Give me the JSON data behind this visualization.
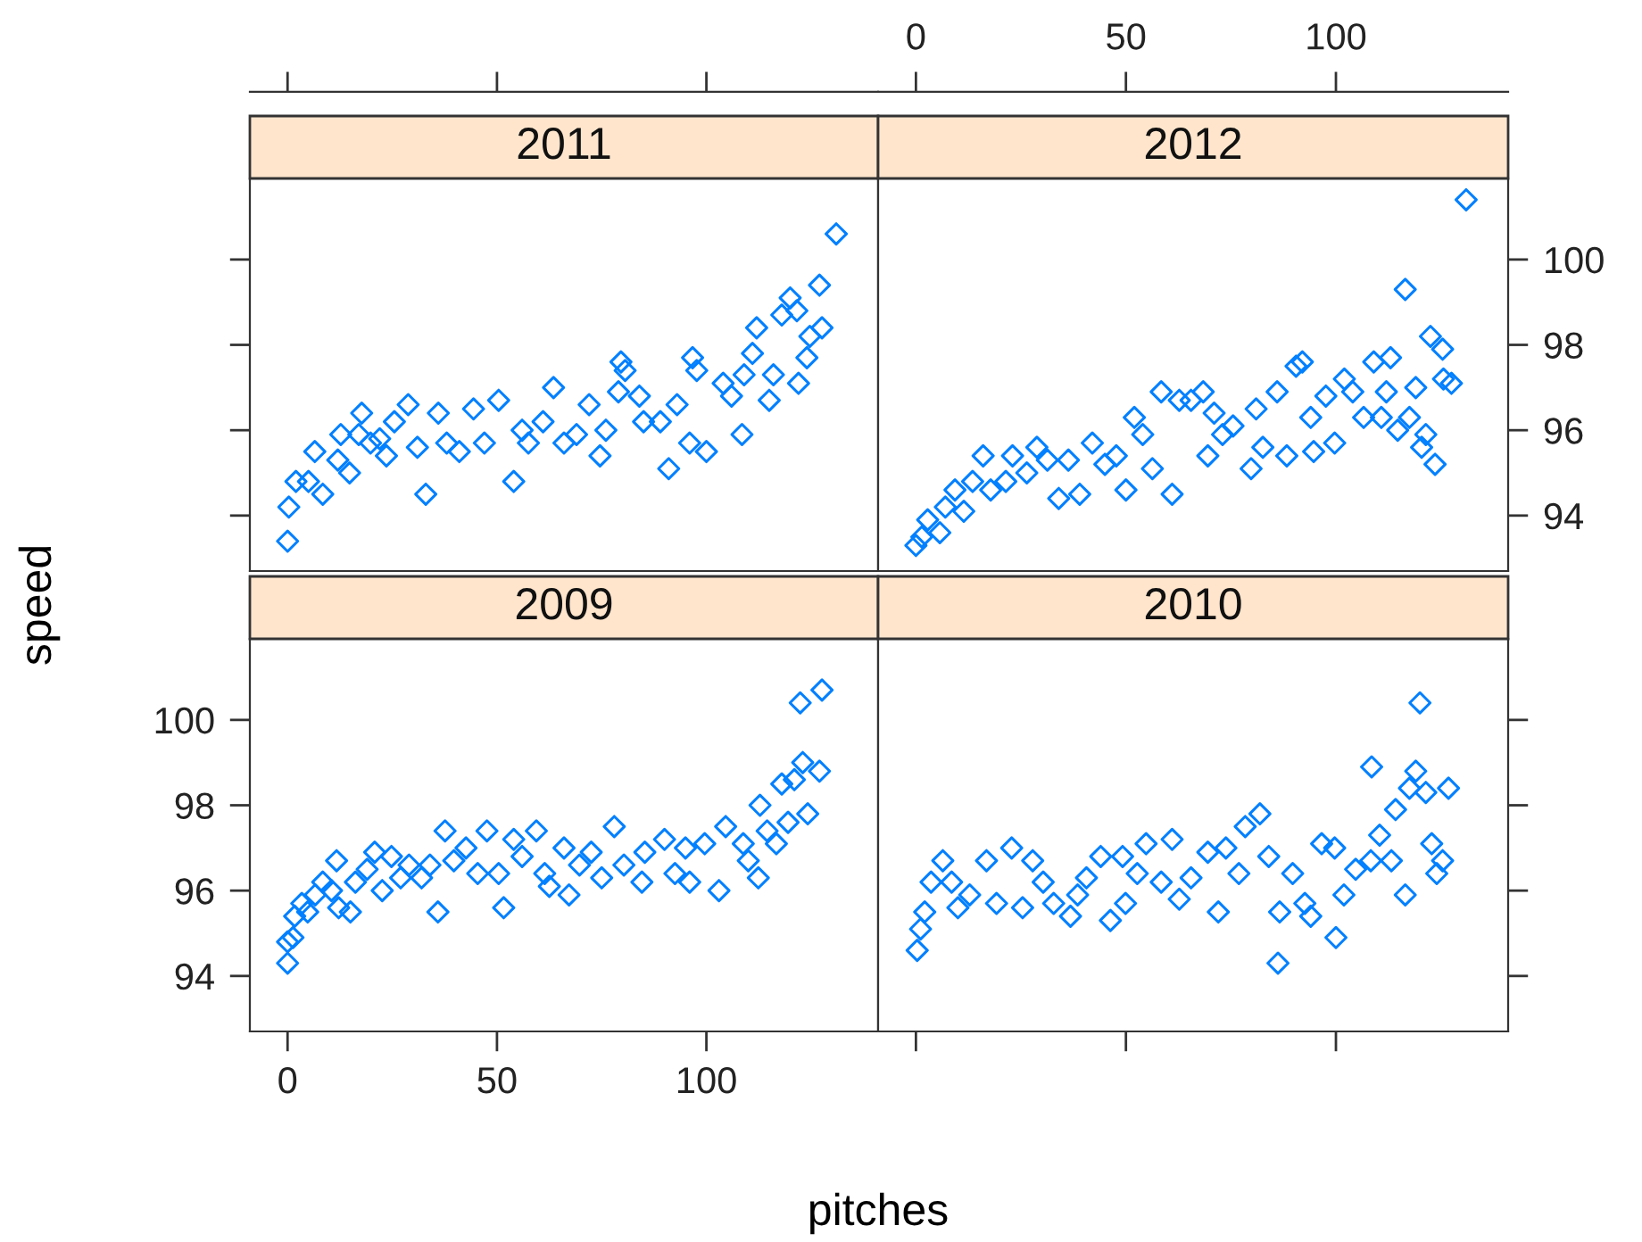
{
  "chart_data": [
    {
      "type": "scatter",
      "title": "2011",
      "xlim": [
        -9,
        141
      ],
      "xticks": [
        0,
        50,
        100
      ],
      "ylim": [
        92.7,
        101.9
      ],
      "yticks": [
        94,
        96,
        98,
        100
      ],
      "tick_labels": false,
      "grid": false,
      "marker": "diamond",
      "series": [
        {
          "color": "#0080ff",
          "x": [
            0,
            0.3,
            2,
            5,
            6.5,
            8.4,
            12,
            12.7,
            14.8,
            17,
            17.7,
            19.8,
            22,
            23.6,
            25.5,
            28.8,
            31,
            33,
            36,
            38,
            41,
            44.4,
            47,
            50.4,
            54,
            56,
            57.5,
            61,
            63.5,
            66,
            69,
            72,
            74.6,
            76,
            79.6,
            80.6,
            79,
            84,
            85,
            89,
            91,
            93,
            96.7,
            97.7,
            96,
            100,
            104,
            106,
            108.5,
            109,
            111,
            112,
            115,
            116,
            118,
            120,
            121.6,
            122,
            124,
            124.7,
            127,
            127.6,
            131
          ],
          "values": [
            93.4,
            94.2,
            94.8,
            94.8,
            95.5,
            94.5,
            95.3,
            95.9,
            95,
            95.9,
            96.4,
            95.7,
            95.8,
            95.4,
            96.2,
            96.6,
            95.6,
            94.5,
            96.4,
            95.7,
            95.5,
            96.5,
            95.7,
            96.7,
            94.8,
            96,
            95.7,
            96.2,
            97,
            95.7,
            95.9,
            96.6,
            95.4,
            96,
            97.6,
            97.4,
            96.9,
            96.8,
            96.2,
            96.2,
            95.1,
            96.6,
            97.7,
            97.4,
            95.7,
            95.5,
            97.1,
            96.8,
            95.9,
            97.3,
            97.8,
            98.4,
            96.7,
            97.3,
            98.7,
            99.1,
            98.8,
            97.1,
            97.7,
            98.2,
            99.4,
            98.4,
            100.6
          ]
        }
      ]
    },
    {
      "type": "scatter",
      "title": "2012",
      "xlim": [
        -9,
        141
      ],
      "xticks": [
        0,
        50,
        100
      ],
      "ylim": [
        92.7,
        101.9
      ],
      "yticks": [
        94,
        96,
        98,
        100
      ],
      "grid": false,
      "marker": "diamond",
      "series": [
        {
          "color": "#0080ff",
          "x": [
            0,
            1.4,
            2.8,
            5.7,
            7,
            9.3,
            11.4,
            13.5,
            16,
            17.8,
            21.4,
            23,
            26.4,
            28.8,
            31.3,
            34,
            36.3,
            39,
            42,
            45,
            47.7,
            50,
            52,
            54,
            56.3,
            58.4,
            61,
            62.7,
            65.5,
            68.4,
            69.5,
            71,
            73,
            75.5,
            79.8,
            81,
            82.6,
            86,
            88.3,
            90.5,
            92,
            94,
            94.7,
            97.6,
            99.7,
            102,
            104,
            106.6,
            109,
            110.8,
            112,
            113,
            114.7,
            116.5,
            117.5,
            119,
            120.4,
            121.4,
            122.5,
            123.6,
            125.4,
            125.6,
            127.5,
            131
          ],
          "values": [
            93.3,
            93.5,
            93.9,
            93.6,
            94.2,
            94.6,
            94.1,
            94.8,
            95.4,
            94.6,
            94.8,
            95.4,
            95,
            95.6,
            95.3,
            94.4,
            95.3,
            94.5,
            95.7,
            95.2,
            95.4,
            94.6,
            96.3,
            95.9,
            95.1,
            96.9,
            94.5,
            96.7,
            96.7,
            96.9,
            95.4,
            96.4,
            95.9,
            96.1,
            95.1,
            96.5,
            95.6,
            96.9,
            95.4,
            97.5,
            97.6,
            96.3,
            95.5,
            96.8,
            95.7,
            97.2,
            96.9,
            96.3,
            97.6,
            96.3,
            96.9,
            97.7,
            96,
            99.3,
            96.3,
            97,
            95.6,
            95.9,
            98.2,
            95.2,
            97.9,
            97.2,
            97.1,
            101.4
          ]
        }
      ]
    },
    {
      "type": "scatter",
      "title": "2009",
      "xlabel": "pitches",
      "ylabel": "speed",
      "xlim": [
        -9,
        141
      ],
      "xticks": [
        0,
        50,
        100
      ],
      "ylim": [
        92.7,
        101.9
      ],
      "yticks": [
        94,
        96,
        98,
        100
      ],
      "grid": false,
      "marker": "diamond",
      "series": [
        {
          "color": "#0080ff",
          "x": [
            0,
            0,
            1.3,
            1.7,
            3.4,
            4.8,
            6.6,
            8.4,
            10.5,
            11.7,
            12.2,
            15,
            16.2,
            19,
            20.8,
            22.6,
            24.8,
            27,
            29,
            32,
            34,
            35.9,
            37.6,
            39.7,
            42.6,
            45.4,
            47.6,
            50.4,
            51.6,
            54,
            56,
            59.4,
            61.4,
            62.5,
            66,
            67.2,
            69.7,
            72.5,
            75,
            78,
            80.3,
            84.6,
            85.3,
            90,
            92.5,
            95,
            96,
            99.6,
            103,
            104.6,
            108.8,
            110,
            112.4,
            112.8,
            114.5,
            116.7,
            118,
            119.5,
            121,
            122.4,
            123,
            124.2,
            127,
            127.6
          ],
          "values": [
            94.3,
            94.8,
            94.9,
            95.4,
            95.7,
            95.5,
            95.9,
            96.2,
            96,
            96.7,
            95.6,
            95.5,
            96.2,
            96.5,
            96.9,
            96,
            96.8,
            96.3,
            96.6,
            96.3,
            96.6,
            95.5,
            97.4,
            96.7,
            97,
            96.4,
            97.4,
            96.4,
            95.6,
            97.2,
            96.8,
            97.4,
            96.4,
            96.1,
            97,
            95.9,
            96.6,
            96.9,
            96.3,
            97.5,
            96.6,
            96.2,
            96.9,
            97.2,
            96.4,
            97,
            96.2,
            97.1,
            96,
            97.5,
            97.1,
            96.7,
            96.3,
            98,
            97.4,
            97.1,
            98.5,
            97.6,
            98.6,
            100.4,
            99,
            97.8,
            98.8,
            100.7
          ]
        }
      ]
    },
    {
      "type": "scatter",
      "title": "2010",
      "xlim": [
        -9,
        141
      ],
      "xticks": [
        0,
        50,
        100
      ],
      "ylim": [
        92.7,
        101.9
      ],
      "yticks": [
        94,
        96,
        98,
        100
      ],
      "tick_labels": false,
      "grid": false,
      "marker": "diamond",
      "series": [
        {
          "color": "#0080ff",
          "x": [
            0.3,
            1.1,
            2.1,
            3.6,
            6.4,
            10,
            8.5,
            12.8,
            16.8,
            19.2,
            22.8,
            25.4,
            27.8,
            30.3,
            32.8,
            36.8,
            38.5,
            40.6,
            44,
            46.3,
            49.2,
            49.9,
            52.7,
            54.8,
            58.4,
            61,
            62.7,
            65.5,
            69.5,
            72,
            73.8,
            76.9,
            78.4,
            81.9,
            84,
            86.2,
            86.6,
            89.7,
            92.6,
            94,
            96.6,
            99.7,
            100,
            101.9,
            104.7,
            108.3,
            108.5,
            110.4,
            113.2,
            114.2,
            116.5,
            117.5,
            119,
            120,
            121.4,
            122.8,
            124,
            125.4,
            126.8
          ],
          "values": [
            94.6,
            95.1,
            95.5,
            96.2,
            96.7,
            95.6,
            96.2,
            95.9,
            96.7,
            95.7,
            97,
            95.6,
            96.7,
            96.2,
            95.7,
            95.4,
            95.9,
            96.3,
            96.8,
            95.3,
            96.8,
            95.7,
            96.4,
            97.1,
            96.2,
            97.2,
            95.8,
            96.3,
            96.9,
            95.5,
            97,
            96.4,
            97.5,
            97.8,
            96.8,
            94.3,
            95.5,
            96.4,
            95.7,
            95.4,
            97.1,
            97,
            94.9,
            95.9,
            96.5,
            96.7,
            98.9,
            97.3,
            96.7,
            97.9,
            95.9,
            98.4,
            98.8,
            100.4,
            98.3,
            97.1,
            96.4,
            96.7,
            98.4
          ]
        }
      ]
    }
  ]
}
